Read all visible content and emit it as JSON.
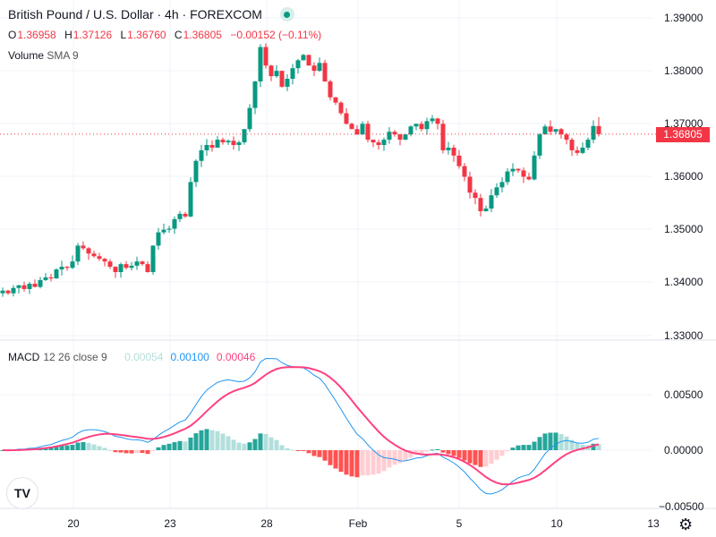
{
  "header": {
    "title": "British Pound / U.S. Dollar · 4h · FOREXCOM",
    "status_icon": "market-open-dot"
  },
  "ohlc": {
    "o_label": "O",
    "o": "1.36958",
    "h_label": "H",
    "h": "1.37126",
    "l_label": "L",
    "l": "1.36760",
    "c_label": "C",
    "c": "1.36805",
    "change": "−0.00152 (−0.11%)"
  },
  "volume": {
    "label": "Volume",
    "sma": "SMA 9"
  },
  "macd": {
    "label": "MACD",
    "params": "12 26 close 9",
    "hist": "0.00054",
    "macd": "0.00100",
    "signal": "0.00046"
  },
  "price_axis": [
    "1.39000",
    "1.38000",
    "1.37000",
    "1.36000",
    "1.35000",
    "1.34000",
    "1.33000"
  ],
  "last_price": "1.36805",
  "macd_axis": [
    "0.00500",
    "0.00000",
    "−0.00500"
  ],
  "time_axis": [
    "20",
    "23",
    "28",
    "Feb",
    "5",
    "10",
    "13"
  ],
  "colors": {
    "up": "#089981",
    "down": "#f23645",
    "macd": "#2196f3",
    "signal": "#ff4081",
    "hist_up": "#26a69a",
    "hist_up_light": "#b2dfdb",
    "hist_dn": "#ff5252",
    "hist_dn_light": "#ffcdd2"
  },
  "chart_data": {
    "type": "candlestick",
    "interval": "4h",
    "last": {
      "open": 1.36958,
      "high": 1.37126,
      "low": 1.3676,
      "close": 1.36805
    },
    "closes": [
      1.3385,
      1.338,
      1.339,
      1.3395,
      1.3388,
      1.3398,
      1.3392,
      1.3405,
      1.341,
      1.3408,
      1.3425,
      1.343,
      1.3428,
      1.344,
      1.347,
      1.3465,
      1.3455,
      1.345,
      1.3445,
      1.344,
      1.343,
      1.342,
      1.3435,
      1.3428,
      1.3432,
      1.344,
      1.3435,
      1.342,
      1.347,
      1.3495,
      1.35,
      1.3502,
      1.352,
      1.353,
      1.3525,
      1.359,
      1.363,
      1.365,
      1.366,
      1.3655,
      1.367,
      1.3665,
      1.3668,
      1.366,
      1.3665,
      1.369,
      1.373,
      1.378,
      1.3845,
      1.381,
      1.379,
      1.38,
      1.377,
      1.3785,
      1.3805,
      1.382,
      1.383,
      1.381,
      1.38,
      1.3815,
      1.378,
      1.375,
      1.374,
      1.372,
      1.37,
      1.369,
      1.368,
      1.37,
      1.367,
      1.3665,
      1.366,
      1.367,
      1.3685,
      1.368,
      1.367,
      1.368,
      1.3695,
      1.37,
      1.369,
      1.3705,
      1.371,
      1.37,
      1.365,
      1.3655,
      1.364,
      1.362,
      1.36,
      1.357,
      1.356,
      1.3535,
      1.354,
      1.3565,
      1.358,
      1.359,
      1.361,
      1.3615,
      1.3612,
      1.36,
      1.3595,
      1.364,
      1.368,
      1.3695,
      1.3685,
      1.369,
      1.368,
      1.367,
      1.365,
      1.3645,
      1.3655,
      1.367,
      1.36958,
      1.36805
    ],
    "price_range": [
      1.33,
      1.39
    ],
    "macd_range": [
      -0.005,
      0.005
    ]
  }
}
